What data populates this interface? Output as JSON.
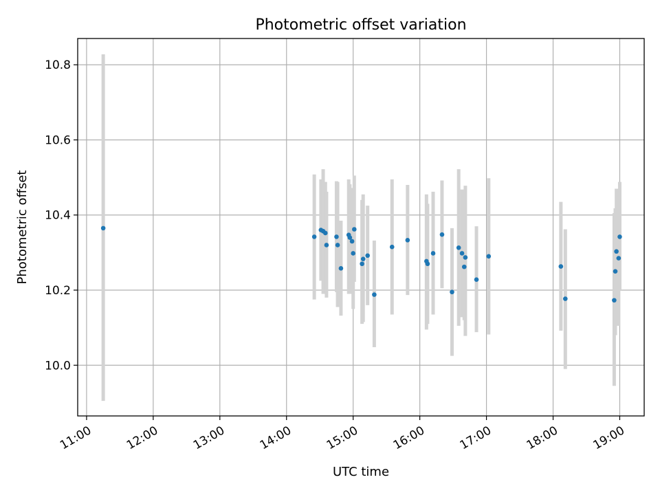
{
  "chart_data": {
    "type": "scatter",
    "title": "Photometric offset variation",
    "xlabel": "UTC time",
    "ylabel": "Photometric offset",
    "xlim": [
      "10:52",
      "19:22"
    ],
    "ylim": [
      9.865,
      10.87
    ],
    "x_ticks": [
      "11:00",
      "12:00",
      "13:00",
      "14:00",
      "15:00",
      "16:00",
      "17:00",
      "18:00",
      "19:00"
    ],
    "y_ticks": [
      10.0,
      10.2,
      10.4,
      10.6,
      10.8
    ],
    "grid": true,
    "legend": "none",
    "colors": {
      "point": "#1f77b4",
      "errorbar": "#d3d3d3"
    },
    "points": [
      {
        "x": "11:15",
        "y": 10.365,
        "ylo": 9.905,
        "yhi": 10.828
      },
      {
        "x": "14:25",
        "y": 10.342,
        "ylo": 10.175,
        "yhi": 10.508
      },
      {
        "x": "14:31",
        "y": 10.36,
        "ylo": 10.225,
        "yhi": 10.495
      },
      {
        "x": "14:33",
        "y": 10.357,
        "ylo": 10.19,
        "yhi": 10.522
      },
      {
        "x": "14:35",
        "y": 10.352,
        "ylo": 10.215,
        "yhi": 10.488
      },
      {
        "x": "14:36",
        "y": 10.32,
        "ylo": 10.18,
        "yhi": 10.462
      },
      {
        "x": "14:45",
        "y": 10.342,
        "ylo": 10.195,
        "yhi": 10.49
      },
      {
        "x": "14:46",
        "y": 10.32,
        "ylo": 10.155,
        "yhi": 10.488
      },
      {
        "x": "14:49",
        "y": 10.258,
        "ylo": 10.132,
        "yhi": 10.385
      },
      {
        "x": "14:56",
        "y": 10.347,
        "ylo": 10.19,
        "yhi": 10.495
      },
      {
        "x": "14:57",
        "y": 10.34,
        "ylo": 10.195,
        "yhi": 10.482
      },
      {
        "x": "14:59",
        "y": 10.33,
        "ylo": 10.19,
        "yhi": 10.472
      },
      {
        "x": "15:00",
        "y": 10.298,
        "ylo": 10.15,
        "yhi": 10.445
      },
      {
        "x": "15:01",
        "y": 10.362,
        "ylo": 10.222,
        "yhi": 10.505
      },
      {
        "x": "15:08",
        "y": 10.27,
        "ylo": 10.11,
        "yhi": 10.44
      },
      {
        "x": "15:09",
        "y": 10.283,
        "ylo": 10.115,
        "yhi": 10.455
      },
      {
        "x": "15:13",
        "y": 10.292,
        "ylo": 10.16,
        "yhi": 10.425
      },
      {
        "x": "15:19",
        "y": 10.188,
        "ylo": 10.048,
        "yhi": 10.332
      },
      {
        "x": "15:35",
        "y": 10.315,
        "ylo": 10.135,
        "yhi": 10.495
      },
      {
        "x": "15:49",
        "y": 10.333,
        "ylo": 10.187,
        "yhi": 10.48
      },
      {
        "x": "16:06",
        "y": 10.277,
        "ylo": 10.095,
        "yhi": 10.455
      },
      {
        "x": "16:07",
        "y": 10.27,
        "ylo": 10.11,
        "yhi": 10.43
      },
      {
        "x": "16:12",
        "y": 10.298,
        "ylo": 10.135,
        "yhi": 10.462
      },
      {
        "x": "16:20",
        "y": 10.348,
        "ylo": 10.205,
        "yhi": 10.492
      },
      {
        "x": "16:29",
        "y": 10.195,
        "ylo": 10.025,
        "yhi": 10.365
      },
      {
        "x": "16:35",
        "y": 10.313,
        "ylo": 10.105,
        "yhi": 10.522
      },
      {
        "x": "16:38",
        "y": 10.298,
        "ylo": 10.128,
        "yhi": 10.468
      },
      {
        "x": "16:40",
        "y": 10.262,
        "ylo": 10.12,
        "yhi": 10.405
      },
      {
        "x": "16:41",
        "y": 10.287,
        "ylo": 10.078,
        "yhi": 10.478
      },
      {
        "x": "16:51",
        "y": 10.228,
        "ylo": 10.088,
        "yhi": 10.37
      },
      {
        "x": "17:02",
        "y": 10.29,
        "ylo": 10.082,
        "yhi": 10.498
      },
      {
        "x": "18:07",
        "y": 10.263,
        "ylo": 10.092,
        "yhi": 10.435
      },
      {
        "x": "18:11",
        "y": 10.177,
        "ylo": 9.99,
        "yhi": 10.362
      },
      {
        "x": "18:55",
        "y": 10.173,
        "ylo": 9.945,
        "yhi": 10.405
      },
      {
        "x": "18:56",
        "y": 10.25,
        "ylo": 10.08,
        "yhi": 10.418
      },
      {
        "x": "18:57",
        "y": 10.303,
        "ylo": 10.14,
        "yhi": 10.47
      },
      {
        "x": "18:59",
        "y": 10.285,
        "ylo": 10.105,
        "yhi": 10.465
      },
      {
        "x": "19:00",
        "y": 10.342,
        "ylo": 10.2,
        "yhi": 10.488
      }
    ]
  }
}
